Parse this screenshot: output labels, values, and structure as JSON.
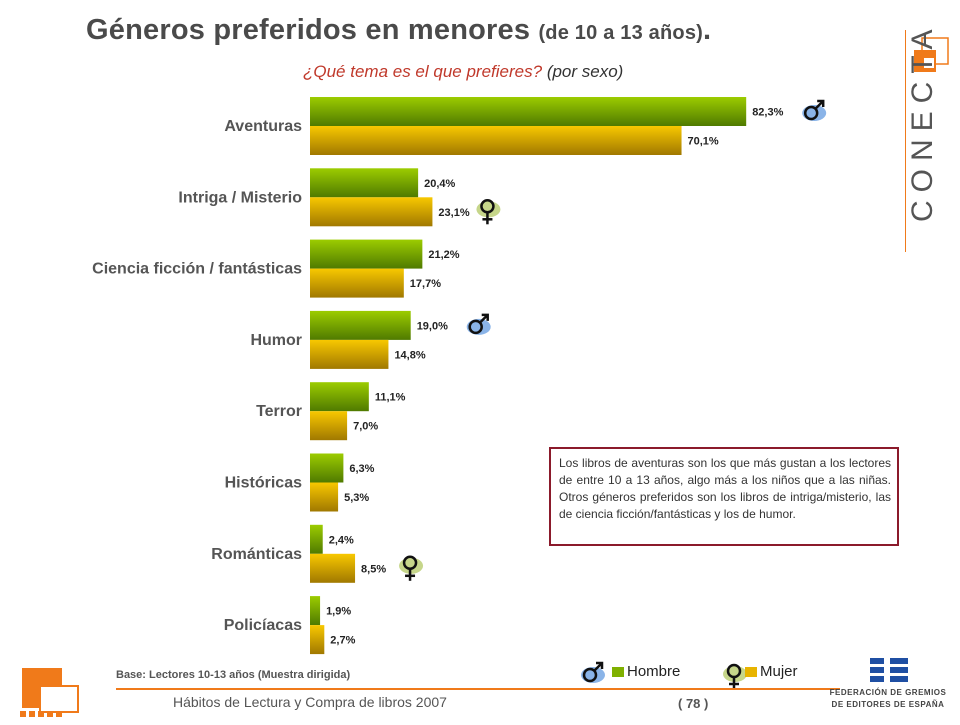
{
  "header": {
    "title": "Géneros preferidos en menores",
    "title_suffix": "(de 10 a 13 años)",
    "title_dot": ".",
    "subtitle": "¿Qué tema es el que prefieres?",
    "subtitle_suffix": "(por sexo)"
  },
  "chart_data": {
    "type": "bar",
    "orientation": "horizontal",
    "categories": [
      "Aventuras",
      "Intriga / Misterio",
      "Ciencia ficción / fantásticas",
      "Humor",
      "Terror",
      "Históricas",
      "Románticas",
      "Policíacas"
    ],
    "series": [
      {
        "name": "Hombre",
        "values": [
          82.3,
          20.4,
          21.2,
          19.0,
          11.1,
          6.3,
          2.4,
          1.9
        ],
        "labels": [
          "82,3%",
          "20,4%",
          "21,2%",
          "19,0%",
          "11,1%",
          "6,3%",
          "2,4%",
          "1,9%"
        ]
      },
      {
        "name": "Mujer",
        "values": [
          70.1,
          23.1,
          17.7,
          14.8,
          7.0,
          5.3,
          8.5,
          2.7
        ],
        "labels": [
          "70,1%",
          "23,1%",
          "17,7%",
          "14,8%",
          "7,0%",
          "5,3%",
          "8,5%",
          "2,7%"
        ]
      }
    ],
    "xlim": [
      0,
      100
    ],
    "grid": false,
    "legend_placement": "bottom",
    "highlights": [
      {
        "category": "Aventuras",
        "symbol": "male"
      },
      {
        "category": "Intriga / Misterio",
        "symbol": "female"
      },
      {
        "category": "Humor",
        "symbol": "male"
      },
      {
        "category": "Románticas",
        "symbol": "female"
      }
    ]
  },
  "colors": {
    "male": "#7fb000",
    "female": "#e8b400",
    "accent": "#f07a1a",
    "border": "#8b1a2b",
    "symbol_bg": "#8ab4e8",
    "symbol_bg_female": "#c6d68a"
  },
  "legend": {
    "male": "Hombre",
    "female": "Mujer"
  },
  "note": "Los libros de aventuras son los que más gustan a los lectores de entre 10 a 13 años, algo más a los niños que a las niñas. Otros géneros preferidos son los libros de intriga/misterio, las de ciencia ficción/fantásticas y los de humor.",
  "base_note": "Base: Lectores 10-13 años (Muestra dirigida)",
  "footer": {
    "title": "Hábitos de Lectura y Compra de libros 2007",
    "page": "( 78 )"
  },
  "brand": {
    "name": "CONECTA"
  },
  "federation": {
    "line1": "FEDERACIÓN DE GREMIOS",
    "line2": "DE EDITORES DE ESPAÑA"
  }
}
